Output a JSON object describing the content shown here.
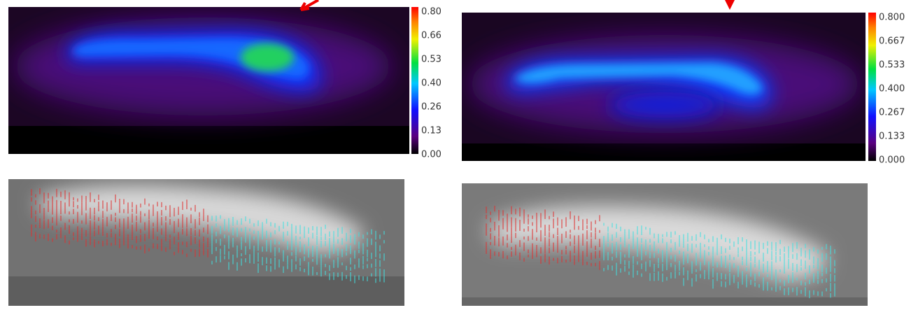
{
  "top_panels": [
    {
      "colorbar_labels": [
        "0.80",
        "0.66",
        "0.53",
        "0.40",
        "0.26",
        "0.13",
        "0.00"
      ]
    },
    {
      "colorbar_labels": [
        "0.800",
        "0.667",
        "0.533",
        "0.400",
        "0.267",
        "0.133",
        "0.000"
      ]
    }
  ]
}
